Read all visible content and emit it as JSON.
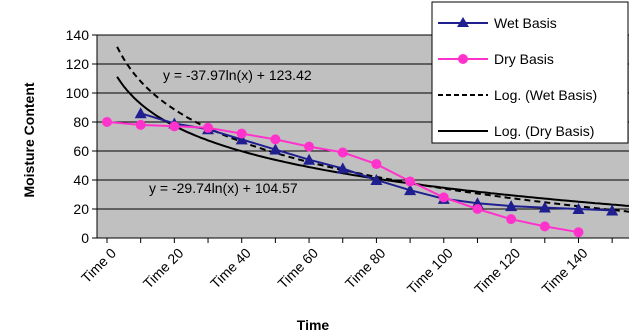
{
  "chart_data": {
    "type": "line",
    "xlabel": "Time",
    "ylabel": "Moisture Content",
    "ylim": [
      0,
      140
    ],
    "yticks": [
      0,
      20,
      40,
      60,
      80,
      100,
      120,
      140
    ],
    "x_tick_labels": [
      "Time 0",
      "Time 20",
      "Time 40",
      "Time 60",
      "Time 80",
      "Time 100",
      "Time 120",
      "Time 140"
    ],
    "x": [
      0,
      10,
      20,
      30,
      40,
      50,
      60,
      70,
      80,
      90,
      100,
      110,
      120,
      130,
      140,
      150
    ],
    "grid": true,
    "plot_background": "#c0c0c0",
    "legend_position": "top-right",
    "series": [
      {
        "name": "Wet Basis",
        "color": "#1f1f8f",
        "marker": "triangle",
        "points": [
          [
            10,
            86
          ],
          [
            20,
            79
          ],
          [
            30,
            75
          ],
          [
            40,
            68
          ],
          [
            50,
            61
          ],
          [
            60,
            54
          ],
          [
            70,
            48
          ],
          [
            80,
            40
          ],
          [
            90,
            33
          ],
          [
            100,
            27
          ],
          [
            110,
            24
          ],
          [
            120,
            22
          ],
          [
            130,
            21
          ],
          [
            140,
            20
          ],
          [
            150,
            19
          ]
        ]
      },
      {
        "name": "Dry Basis",
        "color": "#ff33cc",
        "marker": "circle",
        "points": [
          [
            0,
            80
          ],
          [
            10,
            78
          ],
          [
            20,
            77
          ],
          [
            30,
            76
          ],
          [
            40,
            72
          ],
          [
            50,
            68
          ],
          [
            60,
            63
          ],
          [
            70,
            59
          ],
          [
            80,
            51
          ],
          [
            90,
            39
          ],
          [
            100,
            28
          ],
          [
            110,
            20
          ],
          [
            120,
            13
          ],
          [
            130,
            8
          ],
          [
            140,
            4
          ]
        ]
      }
    ],
    "trendlines": [
      {
        "name": "Log. (Wet Basis)",
        "dash": "dashed",
        "a": -37.97,
        "b": 123.42,
        "equation": "y = -37.97ln(x)  + 123.42"
      },
      {
        "name": "Log. (Dry Basis)",
        "dash": "solid",
        "a": -29.74,
        "b": 104.57,
        "equation": "y = -29.74ln(x)  + 104.57"
      }
    ]
  }
}
